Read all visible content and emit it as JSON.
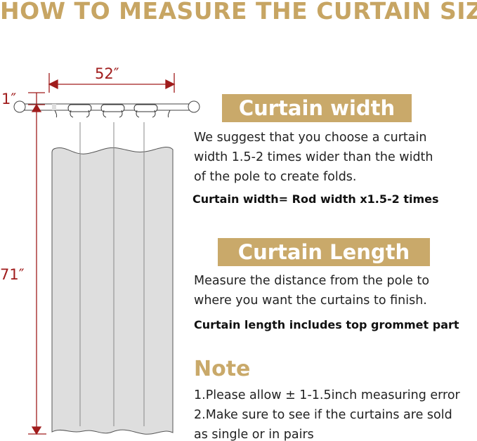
{
  "title": "HOW TO MEASURE THE CURTAIN SIZE",
  "diagram": {
    "width_label": "52″",
    "header_label": "1″",
    "length_label": "71″"
  },
  "width_section": {
    "heading": "Curtain width",
    "lines": [
      "We suggest that you choose a curtain",
      "width 1.5-2 times wider than the width",
      "of the pole to create folds."
    ],
    "formula": "Curtain width= Rod width x1.5-2 times"
  },
  "length_section": {
    "heading": "Curtain Length",
    "lines": [
      "Measure the distance from the pole to",
      "where you want the curtains to finish."
    ],
    "formula": "Curtain length includes top grommet part"
  },
  "note": {
    "heading": "Note",
    "lines": [
      "1.Please allow ± 1-1.5inch measuring error",
      "2.Make sure to see if the curtains are sold",
      "as single or in pairs"
    ]
  },
  "colors": {
    "gold": "#c9a96a",
    "dimension_red": "#a01c1c",
    "curtain_gray": "#dedede"
  }
}
